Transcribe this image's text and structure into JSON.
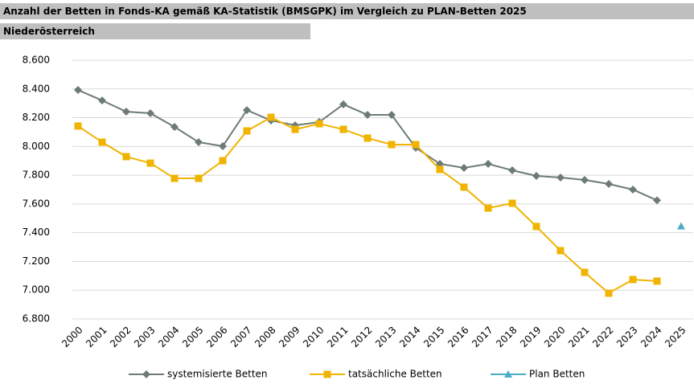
{
  "chart_data": {
    "type": "line",
    "title": "Anzahl der Betten in Fonds-KA gemäß KA-Statistik (BMSGPK) im Vergleich zu PLAN-Betten 2025",
    "subtitle": "Niederösterreich",
    "categories": [
      "2000",
      "2001",
      "2002",
      "2003",
      "2004",
      "2005",
      "2006",
      "2007",
      "2008",
      "2009",
      "2010",
      "2011",
      "2012",
      "2013",
      "2014",
      "2015",
      "2016",
      "2017",
      "2018",
      "2019",
      "2020",
      "2021",
      "2022",
      "2023",
      "2024",
      "2025"
    ],
    "series": [
      {
        "name": "systemisierte Betten",
        "color": "#6d7b76",
        "marker": "diamond",
        "values": [
          8393,
          8320,
          8242,
          8231,
          8136,
          8030,
          8002,
          8253,
          8181,
          8147,
          8170,
          8293,
          8220,
          8220,
          7991,
          7879,
          7851,
          7879,
          7834,
          7795,
          7784,
          7767,
          7739,
          7700,
          7625,
          null
        ]
      },
      {
        "name": "tatsächliche Betten",
        "color": "#f0b400",
        "marker": "square",
        "values": [
          8142,
          8030,
          7929,
          7884,
          7778,
          7778,
          7901,
          8108,
          8203,
          8119,
          8158,
          8119,
          8058,
          8013,
          8013,
          7840,
          7717,
          7571,
          7605,
          7443,
          7275,
          7124,
          6979,
          7074,
          7063,
          null
        ]
      },
      {
        "name": "Plan Betten",
        "color": "#4bacc6",
        "marker": "triangle",
        "values": [
          null,
          null,
          null,
          null,
          null,
          null,
          null,
          null,
          null,
          null,
          null,
          null,
          null,
          null,
          null,
          null,
          null,
          null,
          null,
          null,
          null,
          null,
          null,
          null,
          null,
          7445
        ]
      }
    ],
    "ylim": [
      6800,
      8600
    ],
    "yticks": [
      {
        "value": 6800,
        "label": "6.800"
      },
      {
        "value": 7000,
        "label": "7.000"
      },
      {
        "value": 7200,
        "label": "7.200"
      },
      {
        "value": 7400,
        "label": "7.400"
      },
      {
        "value": 7600,
        "label": "7.600"
      },
      {
        "value": 7800,
        "label": "7.800"
      },
      {
        "value": 8000,
        "label": "8.000"
      },
      {
        "value": 8200,
        "label": "8.200"
      },
      {
        "value": 8400,
        "label": "8.400"
      },
      {
        "value": 8600,
        "label": "8.600"
      }
    ],
    "grid": true,
    "legend": "bottom"
  }
}
